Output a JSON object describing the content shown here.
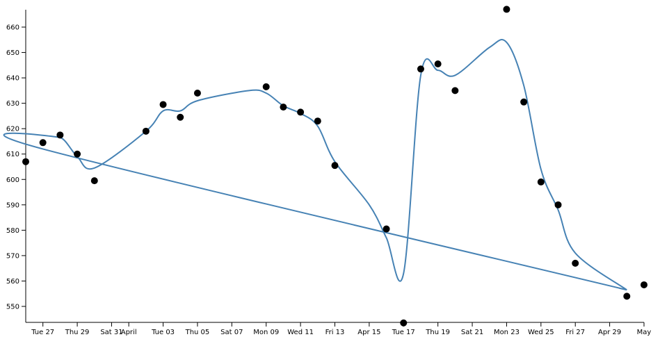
{
  "chart_data": {
    "type": "scatter",
    "title": "",
    "xlabel": "",
    "ylabel": "",
    "grid": false,
    "colors": {
      "line": "#4682b4",
      "points": "#000000",
      "axis": "#000000"
    },
    "x_axis": {
      "type": "time",
      "range": [
        "2020-03-26",
        "2020-05-01"
      ],
      "tick_labels": [
        {
          "date": "2020-03-27",
          "label": "Tue 27"
        },
        {
          "date": "2020-03-29",
          "label": "Thu 29"
        },
        {
          "date": "2020-03-31",
          "label": "Sat 31"
        },
        {
          "date": "2020-04-01",
          "label": "April"
        },
        {
          "date": "2020-04-03",
          "label": "Tue 03"
        },
        {
          "date": "2020-04-05",
          "label": "Thu 05"
        },
        {
          "date": "2020-04-07",
          "label": "Sat 07"
        },
        {
          "date": "2020-04-09",
          "label": "Mon 09"
        },
        {
          "date": "2020-04-11",
          "label": "Wed 11"
        },
        {
          "date": "2020-04-13",
          "label": "Fri 13"
        },
        {
          "date": "2020-04-15",
          "label": "Apr 15"
        },
        {
          "date": "2020-04-17",
          "label": "Tue 17"
        },
        {
          "date": "2020-04-19",
          "label": "Thu 19"
        },
        {
          "date": "2020-04-21",
          "label": "Sat 21"
        },
        {
          "date": "2020-04-23",
          "label": "Mon 23"
        },
        {
          "date": "2020-04-25",
          "label": "Wed 25"
        },
        {
          "date": "2020-04-27",
          "label": "Fri 27"
        },
        {
          "date": "2020-04-29",
          "label": "Apr 29"
        },
        {
          "date": "2020-05-01",
          "label": "May"
        }
      ]
    },
    "y_axis": {
      "range": [
        545,
        665
      ],
      "ticks": [
        550,
        560,
        570,
        580,
        590,
        600,
        610,
        620,
        630,
        640,
        650,
        660
      ]
    },
    "points": [
      {
        "x": "2020-03-26",
        "y": 607
      },
      {
        "x": "2020-03-27",
        "y": 614.5
      },
      {
        "x": "2020-03-28",
        "y": 617.5
      },
      {
        "x": "2020-03-29",
        "y": 610
      },
      {
        "x": "2020-03-30",
        "y": 599.5
      },
      {
        "x": "2020-04-02",
        "y": 619
      },
      {
        "x": "2020-04-03",
        "y": 629.5
      },
      {
        "x": "2020-04-04",
        "y": 624.5
      },
      {
        "x": "2020-04-05",
        "y": 634
      },
      {
        "x": "2020-04-09",
        "y": 636.5
      },
      {
        "x": "2020-04-10",
        "y": 628.5
      },
      {
        "x": "2020-04-11",
        "y": 626.5
      },
      {
        "x": "2020-04-12",
        "y": 623
      },
      {
        "x": "2020-04-13",
        "y": 605.5
      },
      {
        "x": "2020-04-16",
        "y": 580.5
      },
      {
        "x": "2020-04-17",
        "y": 543.5
      },
      {
        "x": "2020-04-18",
        "y": 643.5
      },
      {
        "x": "2020-04-19",
        "y": 645.5
      },
      {
        "x": "2020-04-20",
        "y": 635
      },
      {
        "x": "2020-04-23",
        "y": 667
      },
      {
        "x": "2020-04-24",
        "y": 630.5
      },
      {
        "x": "2020-04-25",
        "y": 599
      },
      {
        "x": "2020-04-26",
        "y": 590
      },
      {
        "x": "2020-04-27",
        "y": 567
      },
      {
        "x": "2020-04-30",
        "y": 554
      },
      {
        "x": "2020-05-01",
        "y": 558.5
      }
    ],
    "line": [
      {
        "x": "2020-04-30",
        "y": 556.5
      },
      {
        "x": "2020-03-27",
        "y": 612
      },
      {
        "x": "2020-03-28",
        "y": 616.5
      },
      {
        "x": "2020-03-29",
        "y": 609
      },
      {
        "x": "2020-03-30",
        "y": 604.5
      },
      {
        "x": "2020-04-02",
        "y": 619
      },
      {
        "x": "2020-04-03",
        "y": 627
      },
      {
        "x": "2020-04-04",
        "y": 627
      },
      {
        "x": "2020-04-05",
        "y": 631
      },
      {
        "x": "2020-04-08",
        "y": 635
      },
      {
        "x": "2020-04-09",
        "y": 634
      },
      {
        "x": "2020-04-10",
        "y": 629
      },
      {
        "x": "2020-04-11",
        "y": 626
      },
      {
        "x": "2020-04-12",
        "y": 621
      },
      {
        "x": "2020-04-13",
        "y": 607
      },
      {
        "x": "2020-04-15",
        "y": 590
      },
      {
        "x": "2020-04-16",
        "y": 577
      },
      {
        "x": "2020-04-17",
        "y": 563
      },
      {
        "x": "2020-04-18",
        "y": 641
      },
      {
        "x": "2020-04-19",
        "y": 643
      },
      {
        "x": "2020-04-20",
        "y": 641
      },
      {
        "x": "2020-04-22",
        "y": 652
      },
      {
        "x": "2020-04-23",
        "y": 654
      },
      {
        "x": "2020-04-24",
        "y": 637
      },
      {
        "x": "2020-04-25",
        "y": 604
      },
      {
        "x": "2020-04-26",
        "y": 588
      },
      {
        "x": "2020-04-27",
        "y": 571
      },
      {
        "x": "2020-04-30",
        "y": 556.5
      }
    ]
  }
}
